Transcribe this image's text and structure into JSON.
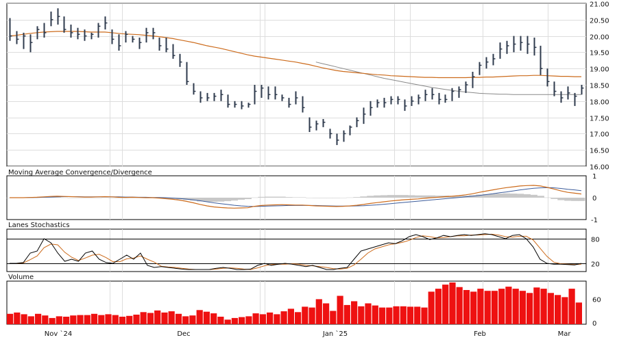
{
  "chart_data": {
    "type": "bar",
    "ticker_panes": {
      "price": {
        "ylim": [
          16.0,
          21.0
        ],
        "yticks": [
          "16.00",
          "16.50",
          "17.00",
          "17.50",
          "18.00",
          "18.50",
          "19.00",
          "19.50",
          "20.00",
          "20.50",
          "21.00"
        ]
      },
      "macd": {
        "title": "Moving Average Convergence/Divergence",
        "ylim": [
          -1,
          1
        ],
        "yticks": [
          "1",
          "0",
          "-1"
        ]
      },
      "stoch": {
        "title": "Lanes Stochastics",
        "ylim": [
          0,
          100
        ],
        "yticks": [
          "80",
          "20"
        ],
        "bands": [
          80,
          20
        ]
      },
      "volume": {
        "title": "Volume",
        "ylim": [
          0,
          100
        ],
        "yticks": [
          "60",
          "0"
        ]
      }
    },
    "x_labels": [
      "Nov `24",
      "Dec",
      "Jan `25",
      "Feb",
      "Mar"
    ],
    "x_label_bar_index": [
      3,
      19,
      40,
      59,
      72
    ],
    "colors": {
      "ohlc": "#2e3a4c",
      "ma_orange": "#cc6a1a",
      "ma_gray": "#888888",
      "macd_line": "#cc6a1a",
      "macd_signal": "#3b5b9a",
      "macd_hist": "#c8c8c8",
      "stoch_k": "#000000",
      "stoch_d": "#cc6a1a",
      "volume": "#ee1111"
    },
    "ohlc": [
      {
        "h": 20.55,
        "l": 19.85,
        "c": 20.0
      },
      {
        "h": 20.15,
        "l": 19.75,
        "c": 19.9
      },
      {
        "h": 20.1,
        "l": 19.6,
        "c": 20.0
      },
      {
        "h": 20.05,
        "l": 19.5,
        "c": 19.8
      },
      {
        "h": 20.3,
        "l": 19.9,
        "c": 20.2
      },
      {
        "h": 20.4,
        "l": 19.95,
        "c": 20.1
      },
      {
        "h": 20.75,
        "l": 20.3,
        "c": 20.5
      },
      {
        "h": 20.85,
        "l": 20.35,
        "c": 20.6
      },
      {
        "h": 20.6,
        "l": 20.1,
        "c": 20.2
      },
      {
        "h": 20.35,
        "l": 19.95,
        "c": 20.1
      },
      {
        "h": 20.25,
        "l": 19.9,
        "c": 20.05
      },
      {
        "h": 20.2,
        "l": 19.85,
        "c": 20.0
      },
      {
        "h": 20.1,
        "l": 19.9,
        "c": 20.05
      },
      {
        "h": 20.4,
        "l": 19.95,
        "c": 20.3
      },
      {
        "h": 20.6,
        "l": 20.2,
        "c": 20.4
      },
      {
        "h": 20.2,
        "l": 19.75,
        "c": 19.9
      },
      {
        "h": 20.05,
        "l": 19.55,
        "c": 19.7
      },
      {
        "h": 20.15,
        "l": 19.8,
        "c": 20.05
      },
      {
        "h": 20.0,
        "l": 19.8,
        "c": 19.9
      },
      {
        "h": 19.95,
        "l": 19.6,
        "c": 19.8
      },
      {
        "h": 20.25,
        "l": 19.8,
        "c": 20.1
      },
      {
        "h": 20.25,
        "l": 19.9,
        "c": 20.1
      },
      {
        "h": 19.95,
        "l": 19.55,
        "c": 19.7
      },
      {
        "h": 19.95,
        "l": 19.5,
        "c": 19.6
      },
      {
        "h": 19.75,
        "l": 19.3,
        "c": 19.4
      },
      {
        "h": 19.45,
        "l": 19.05,
        "c": 19.2
      },
      {
        "h": 19.2,
        "l": 18.5,
        "c": 18.6
      },
      {
        "h": 18.55,
        "l": 18.2,
        "c": 18.3
      },
      {
        "h": 18.3,
        "l": 17.95,
        "c": 18.1
      },
      {
        "h": 18.25,
        "l": 18.0,
        "c": 18.1
      },
      {
        "h": 18.25,
        "l": 18.0,
        "c": 18.15
      },
      {
        "h": 18.35,
        "l": 18.0,
        "c": 18.2
      },
      {
        "h": 18.2,
        "l": 17.8,
        "c": 17.9
      },
      {
        "h": 18.0,
        "l": 17.8,
        "c": 17.9
      },
      {
        "h": 18.0,
        "l": 17.75,
        "c": 17.85
      },
      {
        "h": 17.95,
        "l": 17.8,
        "c": 17.9
      },
      {
        "h": 18.5,
        "l": 17.9,
        "c": 18.3
      },
      {
        "h": 18.5,
        "l": 18.1,
        "c": 18.4
      },
      {
        "h": 18.45,
        "l": 18.05,
        "c": 18.2
      },
      {
        "h": 18.45,
        "l": 18.05,
        "c": 18.2
      },
      {
        "h": 18.2,
        "l": 18.0,
        "c": 18.1
      },
      {
        "h": 18.1,
        "l": 17.8,
        "c": 17.9
      },
      {
        "h": 18.3,
        "l": 17.9,
        "c": 18.1
      },
      {
        "h": 18.15,
        "l": 17.65,
        "c": 17.8
      },
      {
        "h": 17.5,
        "l": 17.05,
        "c": 17.2
      },
      {
        "h": 17.4,
        "l": 17.1,
        "c": 17.3
      },
      {
        "h": 17.45,
        "l": 17.2,
        "c": 17.35
      },
      {
        "h": 17.15,
        "l": 16.85,
        "c": 17.0
      },
      {
        "h": 17.0,
        "l": 16.65,
        "c": 16.8
      },
      {
        "h": 17.1,
        "l": 16.75,
        "c": 17.0
      },
      {
        "h": 17.25,
        "l": 16.95,
        "c": 17.2
      },
      {
        "h": 17.5,
        "l": 17.2,
        "c": 17.4
      },
      {
        "h": 17.8,
        "l": 17.3,
        "c": 17.6
      },
      {
        "h": 18.0,
        "l": 17.55,
        "c": 17.8
      },
      {
        "h": 18.05,
        "l": 17.8,
        "c": 17.95
      },
      {
        "h": 18.1,
        "l": 17.8,
        "c": 17.95
      },
      {
        "h": 18.15,
        "l": 17.9,
        "c": 18.05
      },
      {
        "h": 18.15,
        "l": 17.9,
        "c": 18.05
      },
      {
        "h": 18.05,
        "l": 17.7,
        "c": 17.85
      },
      {
        "h": 18.15,
        "l": 17.85,
        "c": 18.0
      },
      {
        "h": 18.2,
        "l": 17.9,
        "c": 18.1
      },
      {
        "h": 18.35,
        "l": 18.0,
        "c": 18.2
      },
      {
        "h": 18.4,
        "l": 18.05,
        "c": 18.2
      },
      {
        "h": 18.25,
        "l": 17.9,
        "c": 18.05
      },
      {
        "h": 18.2,
        "l": 17.95,
        "c": 18.05
      },
      {
        "h": 18.4,
        "l": 18.0,
        "c": 18.3
      },
      {
        "h": 18.45,
        "l": 18.1,
        "c": 18.35
      },
      {
        "h": 18.6,
        "l": 18.25,
        "c": 18.5
      },
      {
        "h": 18.9,
        "l": 18.4,
        "c": 18.75
      },
      {
        "h": 19.2,
        "l": 18.8,
        "c": 19.1
      },
      {
        "h": 19.35,
        "l": 19.0,
        "c": 19.2
      },
      {
        "h": 19.45,
        "l": 19.1,
        "c": 19.3
      },
      {
        "h": 19.8,
        "l": 19.3,
        "c": 19.6
      },
      {
        "h": 19.85,
        "l": 19.45,
        "c": 19.7
      },
      {
        "h": 20.0,
        "l": 19.5,
        "c": 19.75
      },
      {
        "h": 20.0,
        "l": 19.55,
        "c": 19.8
      },
      {
        "h": 20.0,
        "l": 19.45,
        "c": 19.75
      },
      {
        "h": 19.95,
        "l": 19.4,
        "c": 19.65
      },
      {
        "h": 19.7,
        "l": 18.8,
        "c": 19.0
      },
      {
        "h": 19.0,
        "l": 18.45,
        "c": 18.6
      },
      {
        "h": 18.6,
        "l": 18.15,
        "c": 18.3
      },
      {
        "h": 18.3,
        "l": 17.95,
        "c": 18.1
      },
      {
        "h": 18.45,
        "l": 18.05,
        "c": 18.25
      },
      {
        "h": 18.25,
        "l": 17.85,
        "c": 18.15
      },
      {
        "h": 18.5,
        "l": 18.2,
        "c": 18.4
      }
    ],
    "ma_orange": [
      20.0,
      20.02,
      20.05,
      20.08,
      20.1,
      20.12,
      20.13,
      20.14,
      20.14,
      20.14,
      20.14,
      20.13,
      20.12,
      20.12,
      20.12,
      20.1,
      20.08,
      20.06,
      20.05,
      20.04,
      20.02,
      20.0,
      19.98,
      19.95,
      19.92,
      19.88,
      19.84,
      19.8,
      19.75,
      19.7,
      19.66,
      19.62,
      19.57,
      19.52,
      19.47,
      19.42,
      19.38,
      19.35,
      19.32,
      19.29,
      19.26,
      19.23,
      19.2,
      19.16,
      19.12,
      19.07,
      19.02,
      18.98,
      18.94,
      18.91,
      18.89,
      18.87,
      18.85,
      18.83,
      18.81,
      18.8,
      18.78,
      18.77,
      18.76,
      18.75,
      18.74,
      18.73,
      18.73,
      18.72,
      18.72,
      18.72,
      18.72,
      18.72,
      18.73,
      18.73,
      18.74,
      18.74,
      18.75,
      18.76,
      18.77,
      18.78,
      18.78,
      18.79,
      18.79,
      18.78,
      18.77,
      18.76,
      18.76,
      18.75,
      18.75
    ],
    "ma_gray": {
      "start": 45,
      "values": [
        19.2,
        19.15,
        19.1,
        19.05,
        19.0,
        18.95,
        18.9,
        18.85,
        18.8,
        18.75,
        18.7,
        18.66,
        18.62,
        18.58,
        18.54,
        18.5,
        18.46,
        18.42,
        18.39,
        18.36,
        18.33,
        18.3,
        18.28,
        18.26,
        18.24,
        18.23,
        18.22,
        18.21,
        18.21,
        18.2,
        18.2,
        18.2,
        18.2,
        18.2,
        18.2,
        18.2,
        18.2,
        18.2,
        18.2,
        18.2
      ]
    },
    "macd_line": [
      0.0,
      0.0,
      0.0,
      0.01,
      0.02,
      0.04,
      0.06,
      0.07,
      0.06,
      0.05,
      0.04,
      0.03,
      0.03,
      0.04,
      0.05,
      0.04,
      0.02,
      0.01,
      0.02,
      0.01,
      0.0,
      0.0,
      -0.02,
      -0.05,
      -0.08,
      -0.12,
      -0.18,
      -0.25,
      -0.33,
      -0.4,
      -0.45,
      -0.48,
      -0.5,
      -0.51,
      -0.5,
      -0.49,
      -0.42,
      -0.38,
      -0.36,
      -0.35,
      -0.34,
      -0.35,
      -0.36,
      -0.36,
      -0.38,
      -0.4,
      -0.41,
      -0.42,
      -0.43,
      -0.42,
      -0.4,
      -0.37,
      -0.33,
      -0.28,
      -0.24,
      -0.2,
      -0.16,
      -0.13,
      -0.1,
      -0.08,
      -0.06,
      -0.03,
      0.0,
      0.02,
      0.05,
      0.07,
      0.1,
      0.14,
      0.19,
      0.26,
      0.32,
      0.38,
      0.44,
      0.49,
      0.53,
      0.57,
      0.59,
      0.6,
      0.57,
      0.5,
      0.42,
      0.33,
      0.26,
      0.22,
      0.18
    ],
    "macd_signal": [
      0.0,
      0.0,
      0.0,
      0.01,
      0.01,
      0.02,
      0.03,
      0.04,
      0.05,
      0.05,
      0.05,
      0.04,
      0.04,
      0.04,
      0.04,
      0.04,
      0.04,
      0.03,
      0.03,
      0.02,
      0.02,
      0.01,
      0.01,
      0.0,
      -0.02,
      -0.04,
      -0.07,
      -0.11,
      -0.15,
      -0.2,
      -0.25,
      -0.29,
      -0.33,
      -0.37,
      -0.4,
      -0.42,
      -0.43,
      -0.42,
      -0.41,
      -0.4,
      -0.39,
      -0.38,
      -0.38,
      -0.38,
      -0.38,
      -0.38,
      -0.39,
      -0.4,
      -0.41,
      -0.41,
      -0.41,
      -0.4,
      -0.39,
      -0.37,
      -0.35,
      -0.32,
      -0.29,
      -0.26,
      -0.23,
      -0.2,
      -0.17,
      -0.14,
      -0.11,
      -0.08,
      -0.05,
      -0.02,
      0.01,
      0.04,
      0.07,
      0.11,
      0.15,
      0.19,
      0.24,
      0.28,
      0.33,
      0.38,
      0.42,
      0.46,
      0.48,
      0.49,
      0.48,
      0.45,
      0.41,
      0.38,
      0.34
    ],
    "stoch_k": [
      20,
      20,
      22,
      45,
      50,
      80,
      70,
      45,
      25,
      30,
      25,
      45,
      50,
      30,
      22,
      20,
      30,
      40,
      30,
      45,
      15,
      10,
      12,
      10,
      8,
      6,
      5,
      5,
      5,
      5,
      8,
      10,
      8,
      5,
      5,
      6,
      15,
      20,
      15,
      18,
      20,
      18,
      15,
      12,
      15,
      10,
      5,
      5,
      8,
      10,
      30,
      50,
      55,
      60,
      65,
      70,
      68,
      75,
      85,
      90,
      85,
      78,
      82,
      88,
      85,
      88,
      90,
      88,
      90,
      92,
      90,
      85,
      80,
      88,
      90,
      80,
      60,
      30,
      20,
      18,
      18,
      17,
      16,
      20
    ],
    "stoch_d": [
      20,
      20,
      21,
      29,
      38,
      58,
      67,
      65,
      47,
      35,
      27,
      33,
      40,
      42,
      34,
      24,
      24,
      31,
      33,
      38,
      30,
      23,
      13,
      11,
      10,
      8,
      6,
      5,
      5,
      5,
      6,
      8,
      9,
      8,
      6,
      5,
      9,
      14,
      17,
      18,
      18,
      19,
      18,
      15,
      14,
      12,
      10,
      7,
      6,
      8,
      16,
      30,
      45,
      55,
      60,
      65,
      68,
      71,
      76,
      83,
      87,
      85,
      82,
      83,
      85,
      87,
      87,
      89,
      89,
      90,
      91,
      89,
      85,
      84,
      86,
      86,
      77,
      57,
      37,
      23,
      19,
      18,
      17,
      18
    ],
    "volume": [
      25,
      28,
      24,
      19,
      25,
      21,
      15,
      19,
      18,
      21,
      22,
      22,
      25,
      22,
      24,
      22,
      18,
      20,
      23,
      29,
      27,
      33,
      28,
      31,
      25,
      19,
      21,
      34,
      30,
      26,
      18,
      11,
      15,
      17,
      19,
      26,
      24,
      28,
      24,
      31,
      37,
      29,
      42,
      40,
      60,
      50,
      32,
      68,
      46,
      55,
      43,
      50,
      45,
      40,
      40,
      43,
      43,
      42,
      42,
      40,
      78,
      85,
      95,
      100,
      89,
      82,
      78,
      85,
      80,
      80,
      85,
      90,
      85,
      80,
      75,
      88,
      85,
      75,
      70,
      65,
      85,
      52
    ],
    "volume_max_label": "60",
    "macd_hist_extra": [
      0.0,
      0.0,
      0.0,
      0.0,
      0.01,
      0.02,
      0.03,
      0.03,
      0.01,
      0.0,
      -0.01,
      -0.01,
      -0.01,
      0.0,
      0.01,
      0.0,
      -0.02,
      -0.02,
      -0.01,
      -0.01,
      -0.02,
      -0.01,
      -0.03,
      -0.05,
      -0.06,
      -0.08,
      -0.11,
      -0.14,
      -0.18,
      -0.2,
      -0.2,
      -0.19,
      -0.17,
      -0.14,
      -0.1,
      -0.07,
      0.01,
      0.04,
      0.05,
      0.05,
      0.05,
      0.03,
      0.02,
      0.02,
      0.0,
      -0.02,
      -0.02,
      -0.02,
      -0.02,
      -0.01,
      0.01,
      0.03,
      0.06,
      0.09,
      0.11,
      0.12,
      0.13,
      0.13,
      0.13,
      0.12,
      0.11,
      0.11,
      0.11,
      0.1,
      0.1,
      0.09,
      0.09,
      0.1,
      0.12,
      0.15,
      0.17,
      0.19,
      0.2,
      0.21,
      0.2,
      0.19,
      0.17,
      0.14,
      0.09,
      0.01,
      -0.06,
      -0.12,
      -0.15,
      -0.16,
      -0.16
    ]
  }
}
